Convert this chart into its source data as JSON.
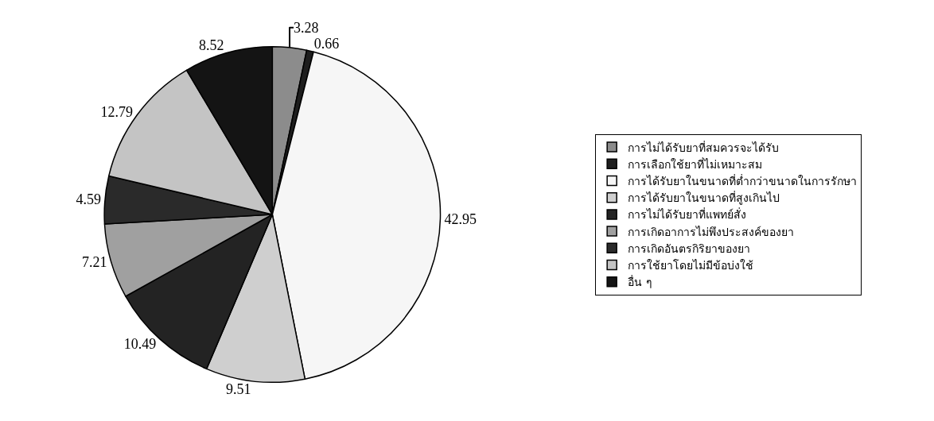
{
  "chart_data": {
    "type": "pie",
    "categories": [
      "การไม่ได้รับยาที่สมควรจะได้รับ",
      "การเลือกใช้ยาที่ไม่เหมาะสม",
      "การได้รับยาในขนาดที่ต่ำกว่าขนาดในการรักษา",
      "การได้รับยาในขนาดที่สูงเกินไป",
      "การไม่ได้รับยาที่แพทย์สั่ง",
      "การเกิดอาการไม่พึงประสงค์ของยา",
      "การเกิดอันตรกิริยาของยา",
      "การใช้ยาโดยไม่มีข้อบ่งใช้",
      "อื่น ๆ"
    ],
    "values": [
      3.28,
      0.66,
      42.95,
      9.51,
      10.49,
      7.21,
      4.59,
      12.79,
      8.52
    ],
    "colors": [
      "#8c8c8c",
      "#1e1e1e",
      "#f6f6f6",
      "#cfcfcf",
      "#232323",
      "#a0a0a0",
      "#2a2a2a",
      "#c4c4c4",
      "#141414"
    ],
    "data_labels": true,
    "legend": "right"
  }
}
